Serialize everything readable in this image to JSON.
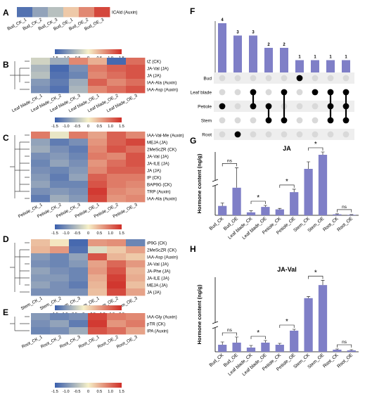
{
  "colors": {
    "low": "#3a5fad",
    "mid": "#f6f0c8",
    "high": "#cf2d27",
    "bar": "#7f7fc7",
    "dot_on": "#000000",
    "dot_off": "#d9d9d9",
    "stripe": "#eeeeee"
  },
  "panel_labels": {
    "A": "A",
    "B": "B",
    "C": "C",
    "D": "D",
    "E": "E",
    "F": "F",
    "G": "G",
    "H": "H"
  },
  "chart_data": [
    {
      "id": "A",
      "type": "heatmap",
      "columns": [
        "Bud_CK_1",
        "Bud_CK_2",
        "Bud_CK_3",
        "Bud_OE_1",
        "Bud_OE_2",
        "Bud_OE_3"
      ],
      "rows": [
        "ICAld (Auxin)"
      ],
      "values": [
        [
          -1.3,
          -0.8,
          -0.5,
          0.3,
          0.8,
          1.3
        ]
      ],
      "legend_ticks": [
        "-1.5",
        "-1.0",
        "-0.5",
        "0",
        "0.5",
        "1.0",
        "1.5"
      ],
      "range": [
        -1.5,
        1.5
      ]
    },
    {
      "id": "B",
      "type": "heatmap",
      "columns": [
        "Leaf blade_CK_1",
        "Leaf blade_CK_2",
        "Leaf blade_CK_3",
        "Leaf blade_OE_1",
        "Leaf blade_OE_2",
        "Leaf blade_OE_3"
      ],
      "rows": [
        "tZ (CK)",
        "JA-Val (JA)",
        "JA (JA)",
        "IAA-Ala (Auxin)",
        "IAA-Asp (Auxin)"
      ],
      "values": [
        [
          -0.3,
          -0.7,
          0.8,
          0.5,
          -1.4,
          1.0
        ],
        [
          -0.6,
          -1.4,
          -1.0,
          0.9,
          1.1,
          1.2
        ],
        [
          -0.5,
          -1.3,
          -1.1,
          0.8,
          1.0,
          1.2
        ],
        [
          -0.9,
          -1.2,
          -0.7,
          1.1,
          0.8,
          1.0
        ],
        [
          -1.0,
          -1.3,
          -0.6,
          0.8,
          1.0,
          1.2
        ]
      ],
      "legend_ticks": [
        "-1.5",
        "-1.0",
        "-0.5",
        "0",
        "0.5",
        "1.0",
        "1.5"
      ],
      "range": [
        -1.5,
        1.5
      ]
    },
    {
      "id": "C",
      "type": "heatmap",
      "columns": [
        "Petiole_CK_1",
        "Petiole_CK_2",
        "Petiole_CK_3",
        "Petiole_OE_1",
        "Petiole_OE_2",
        "Petiole_OE_3"
      ],
      "rows": [
        "IAA-Val-Me (Auxin)",
        "MEJA (JA)",
        "2MeScZR (CK)",
        "JA-Val (JA)",
        "JA-ILE (JA)",
        "JA (JA)",
        "IP (CK)",
        "BAP9G (CK)",
        "TRP (Auxin)",
        "IAA-Ala (Auxin)"
      ],
      "values": [
        [
          0.9,
          -0.1,
          0.9,
          0.6,
          1.1,
          0.8
        ],
        [
          -0.8,
          -1.2,
          -1.0,
          0.7,
          1.1,
          1.3
        ],
        [
          -0.7,
          -1.0,
          -1.2,
          0.8,
          1.2,
          1.0
        ],
        [
          -1.0,
          -0.9,
          -1.1,
          0.9,
          0.8,
          1.2
        ],
        [
          -1.1,
          -0.8,
          -1.0,
          0.7,
          1.0,
          1.2
        ],
        [
          -1.0,
          -1.1,
          -0.9,
          0.8,
          1.1,
          1.1
        ],
        [
          -0.9,
          -1.2,
          -0.8,
          1.1,
          0.9,
          0.9
        ],
        [
          -0.8,
          -1.1,
          -1.1,
          1.2,
          0.9,
          0.8
        ],
        [
          -1.0,
          -0.9,
          -1.0,
          1.4,
          0.8,
          0.7
        ],
        [
          -1.2,
          -0.7,
          -0.9,
          1.3,
          0.7,
          0.8
        ]
      ],
      "legend_ticks": [
        "-1.5",
        "-1.0",
        "-0.5",
        "0",
        "0.5",
        "1.0",
        "1.5"
      ],
      "range": [
        -1.5,
        1.5
      ]
    },
    {
      "id": "D",
      "type": "heatmap",
      "columns": [
        "Stem_CK_1",
        "Stem_CK_2",
        "Stem_CK_3",
        "Stem_OE_1",
        "Stem_OE_2",
        "Stem_OE_3"
      ],
      "rows": [
        "iP9G (CK)",
        "2MeScZR (CK)",
        "IAA-Asp (Auxin)",
        "JA-Val (JA)",
        "JA-Phe (JA)",
        "JA-ILE (JA)",
        "MEJA (JA)",
        "JA (JA)"
      ],
      "values": [
        [
          0.5,
          0.1,
          -1.4,
          0.9,
          1.0,
          -1.1
        ],
        [
          0.6,
          0.9,
          -1.3,
          -0.2,
          0.4,
          0.8
        ],
        [
          -0.9,
          -1.1,
          -0.8,
          1.6,
          0.6,
          0.4
        ],
        [
          -1.0,
          -1.1,
          -0.9,
          0.8,
          1.4,
          0.9
        ],
        [
          -0.8,
          -1.0,
          -1.1,
          0.9,
          1.6,
          0.6
        ],
        [
          -0.9,
          -0.9,
          -1.1,
          0.7,
          1.8,
          0.7
        ],
        [
          -0.8,
          -1.0,
          -1.2,
          0.6,
          1.9,
          0.5
        ],
        [
          -1.0,
          -1.0,
          -1.0,
          0.5,
          1.7,
          0.8
        ]
      ],
      "legend_ticks": [
        "-1.5",
        "-1.0",
        "-0.5",
        "0",
        "0.5",
        "1.0",
        "1.5",
        "2.0"
      ],
      "range": [
        -1.5,
        2.0
      ]
    },
    {
      "id": "E",
      "type": "heatmap",
      "columns": [
        "Root_CK_1",
        "Root_CK_2",
        "Root_CK_3",
        "Root_OE_1",
        "Root_OE_2",
        "Root_OE_3"
      ],
      "rows": [
        "IAA-Gly (Auxin)",
        "pTR (CK)",
        "IPA (Auxin)"
      ],
      "values": [
        [
          -0.9,
          -1.1,
          -1.0,
          1.3,
          0.9,
          0.8
        ],
        [
          -1.0,
          -0.8,
          -1.2,
          1.4,
          0.7,
          0.9
        ],
        [
          -1.1,
          -1.0,
          -0.7,
          1.2,
          1.0,
          0.6
        ]
      ],
      "legend_ticks": [
        "-1.5",
        "-1.0",
        "-0.5",
        "0",
        "0.5",
        "1.0",
        "1.5"
      ],
      "range": [
        -1.5,
        1.5
      ]
    },
    {
      "id": "F",
      "type": "bar",
      "values": [
        4,
        3,
        3,
        2,
        2,
        1,
        1,
        1,
        1
      ],
      "sets": [
        "Bud",
        "Leaf blade",
        "Petiole",
        "Stem",
        "Root"
      ],
      "membership": [
        [
          2
        ],
        [
          4
        ],
        [
          1,
          2
        ],
        [
          2,
          3
        ],
        [
          1,
          3
        ],
        [
          0
        ],
        [
          1
        ],
        [
          1,
          2,
          3
        ],
        [
          1,
          2,
          3
        ]
      ]
    },
    {
      "id": "G",
      "type": "bar",
      "title": "JA",
      "ylabel": "Hormone content (ng/g)",
      "categories": [
        "Bud_CK",
        "Bud_OE",
        "Leaf blade_CK",
        "Leaf blade_OE",
        "Petiole_CK",
        "Petiole_OE",
        "Stem_CK",
        "Stem_OE",
        "Root_CK",
        "Root_OE"
      ],
      "values": [
        190,
        560,
        60,
        170,
        120,
        470,
        1000,
        1500,
        20,
        10
      ],
      "errors": [
        60,
        480,
        30,
        30,
        20,
        60,
        250,
        100,
        10,
        5
      ],
      "significance": [
        {
          "pair": [
            0,
            1
          ],
          "label": "ns"
        },
        {
          "pair": [
            2,
            3
          ],
          "label": "*"
        },
        {
          "pair": [
            4,
            5
          ],
          "label": "*"
        },
        {
          "pair": [
            6,
            7
          ],
          "label": "*"
        },
        {
          "pair": [
            8,
            9
          ],
          "label": "ns"
        }
      ]
    },
    {
      "id": "H",
      "type": "bar",
      "title": "JA-Val",
      "ylabel": "Hormone content (ng/g)",
      "categories": [
        "Bud_CK",
        "Bud_OE",
        "Leaf blade_CK",
        "Leaf blade_OE",
        "Petiole_CK",
        "Petiole_OE",
        "Stem_CK",
        "Stem_OE",
        "Root_CK",
        "Root_OE"
      ],
      "values": [
        1.0,
        1.3,
        0.6,
        1.3,
        1.0,
        3.0,
        8.0,
        10.5,
        0.3,
        0.2
      ],
      "errors": [
        0.4,
        0.8,
        0.3,
        0.3,
        0.2,
        0.2,
        0.3,
        0.9,
        0.1,
        0.1
      ],
      "significance": [
        {
          "pair": [
            0,
            1
          ],
          "label": "ns"
        },
        {
          "pair": [
            2,
            3
          ],
          "label": "*"
        },
        {
          "pair": [
            4,
            5
          ],
          "label": "*"
        },
        {
          "pair": [
            6,
            7
          ],
          "label": "*"
        },
        {
          "pair": [
            8,
            9
          ],
          "label": "ns"
        }
      ]
    }
  ]
}
